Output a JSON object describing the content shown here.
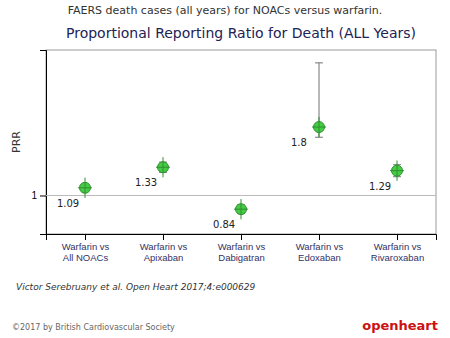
{
  "chart_data": {
    "type": "scatter",
    "title": "Proportional Reporting Ratio for Death (ALL Years)",
    "subtitle": "FAERS death cases (all years) for NOACs versus warfarin.",
    "y_label": "PRR",
    "categories": [
      "Warfarin vs\nAll NOACs",
      "Warfarin vs\nApixaban",
      "Warfarin vs\nDabigatran",
      "Warfarin vs\nEdoxaban",
      "Warfarin vs\nRivaroxaban"
    ],
    "values": [
      1.09,
      1.33,
      0.84,
      1.8,
      1.29
    ],
    "yerr_lower": [
      0.04,
      0.06,
      0.05,
      0.12,
      0.07
    ],
    "yerr_upper": [
      0.04,
      0.06,
      0.05,
      0.75,
      0.07
    ],
    "ref_line": 1.0,
    "color": "#44cc44",
    "marker": "circle",
    "data_labels": true,
    "grid": false,
    "ylim": [
      0.55,
      2.7
    ],
    "yticks": [
      1
    ],
    "annotations": [
      "Victor Serebruany et al. Open Heart 2017;4:e000629",
      "©2017 by British Cardiovascular Society",
      "openheart"
    ]
  }
}
